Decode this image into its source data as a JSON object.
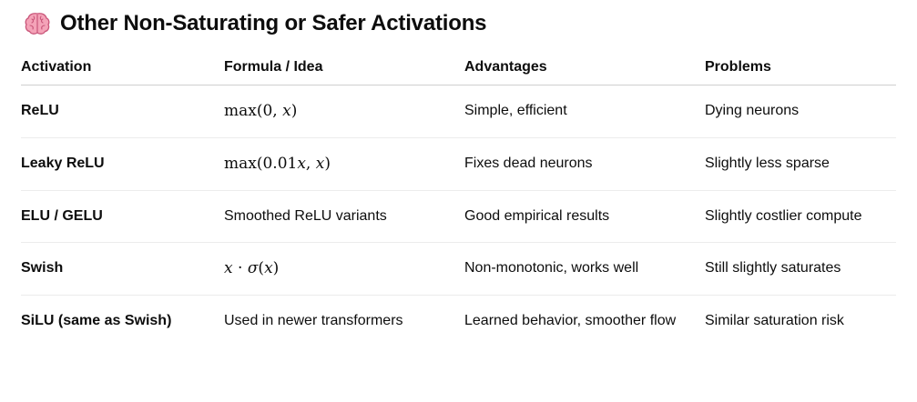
{
  "heading": {
    "icon": "brain-icon",
    "title": "Other Non-Saturating or Safer Activations"
  },
  "table": {
    "headers": [
      "Activation",
      "Formula / Idea",
      "Advantages",
      "Problems"
    ],
    "rows": [
      {
        "activation": "ReLU",
        "formula": "max(0, x)",
        "formula_is_math": true,
        "advantages": "Simple, efficient",
        "problems": "Dying neurons"
      },
      {
        "activation": "Leaky ReLU",
        "formula": "max(0.01x, x)",
        "formula_is_math": true,
        "advantages": "Fixes dead neurons",
        "problems": "Slightly less sparse"
      },
      {
        "activation": "ELU / GELU",
        "formula": "Smoothed ReLU variants",
        "formula_is_math": false,
        "advantages": "Good empirical results",
        "problems": "Slightly costlier compute"
      },
      {
        "activation": "Swish",
        "formula": "x · σ(x)",
        "formula_is_math": true,
        "advantages": "Non-monotonic, works well",
        "problems": "Still slightly saturates"
      },
      {
        "activation": "SiLU (same as Swish)",
        "formula": "Used in newer transformers",
        "formula_is_math": false,
        "advantages": "Learned behavior, smoother flow",
        "problems": "Similar saturation risk"
      }
    ]
  }
}
